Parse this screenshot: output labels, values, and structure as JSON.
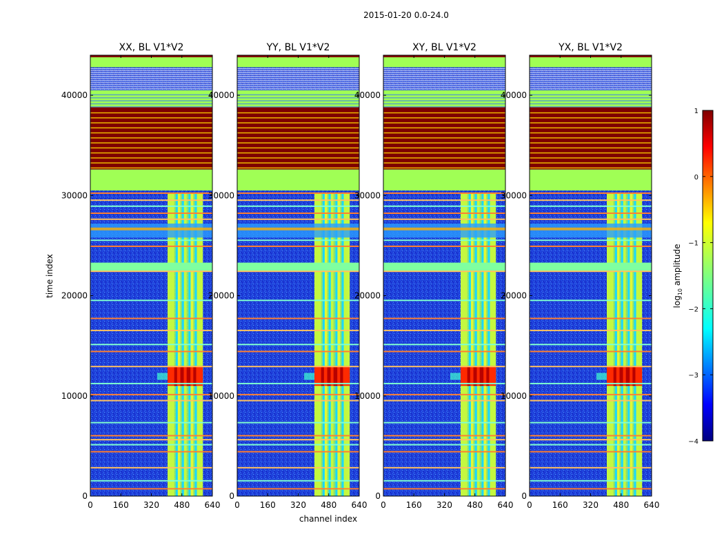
{
  "chart_data": {
    "type": "heatmap",
    "suptitle": "2015-01-20 0.0-24.0",
    "xlabel": "channel index",
    "ylabel": "time index",
    "xlim": [
      0,
      640
    ],
    "ylim": [
      0,
      44000
    ],
    "xticks": [
      0,
      160,
      320,
      480,
      640
    ],
    "yticks": [
      0,
      10000,
      20000,
      30000,
      40000
    ],
    "panels": [
      {
        "title": "XX, BL V1*V2"
      },
      {
        "title": "YY, BL V1*V2"
      },
      {
        "title": "XY, BL V1*V2"
      },
      {
        "title": "YX, BL V1*V2"
      }
    ],
    "colorbar": {
      "label_prefix": "log",
      "label_sub": "10",
      "label_suffix": " amplitude",
      "range": [
        -4,
        1
      ],
      "ticks": [
        1,
        0,
        -1,
        -2,
        -3,
        -4
      ],
      "colormap": "jet",
      "colors": [
        "#00007f",
        "#0000ff",
        "#007fff",
        "#00ffff",
        "#7fff7f",
        "#ffff00",
        "#ff7f00",
        "#ff0000",
        "#7f0000"
      ]
    },
    "features": {
      "rfi_band_channels": [
        405,
        590
      ],
      "rfi_band_sub_bands": [
        [
          405,
          440
        ],
        [
          455,
          472
        ],
        [
          490,
          505
        ],
        [
          525,
          540
        ],
        [
          555,
          590
        ]
      ],
      "hot_block_time_range": [
        11000,
        13000
      ],
      "flagged_band_time_ranges": [
        [
          30500,
          32600
        ],
        [
          38800,
          40500
        ],
        [
          42800,
          44000
        ]
      ],
      "saturated_band_time_range": [
        32600,
        38800
      ],
      "bright_band_time_range": [
        22400,
        23300
      ],
      "rfi_flare_time_range": [
        25800,
        27200
      ]
    }
  }
}
